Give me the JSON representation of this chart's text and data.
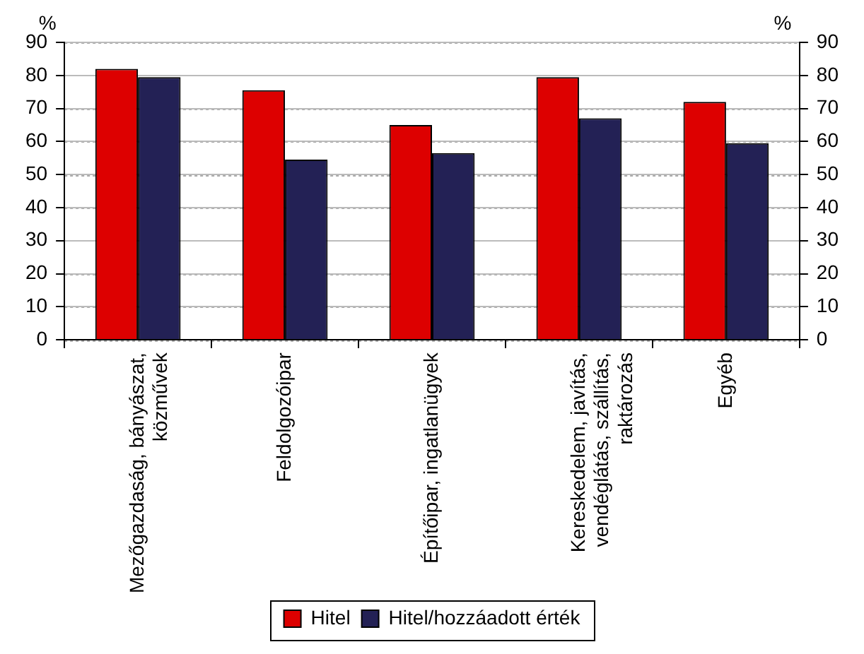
{
  "chart_data": {
    "type": "bar",
    "ylabel": "%",
    "y2label": "%",
    "categories": [
      "Mezőgazdaság, bányászat, közművek",
      "Feldolgozóipar",
      "Építőipar, ingatlanügyek",
      "Kereskedelem, javítás, vendéglátás, szállítás, raktározás",
      "Egyéb"
    ],
    "series": [
      {
        "name": "Hitel",
        "color": "#dd0000",
        "values": [
          82,
          75.5,
          65,
          79.5,
          72
        ]
      },
      {
        "name": "Hitel/hozzáadott érték",
        "color": "#232155",
        "values": [
          79.5,
          54.5,
          56.5,
          67,
          59.5
        ]
      }
    ],
    "ylim": [
      0,
      90
    ],
    "yticks": [
      0,
      10,
      20,
      30,
      40,
      50,
      60,
      70,
      80,
      90
    ],
    "y2lim": [
      0,
      90
    ],
    "y2ticks": [
      0,
      10,
      20,
      30,
      40,
      50,
      60,
      70,
      80,
      90
    ],
    "grid": "y",
    "legend": "bottom"
  }
}
